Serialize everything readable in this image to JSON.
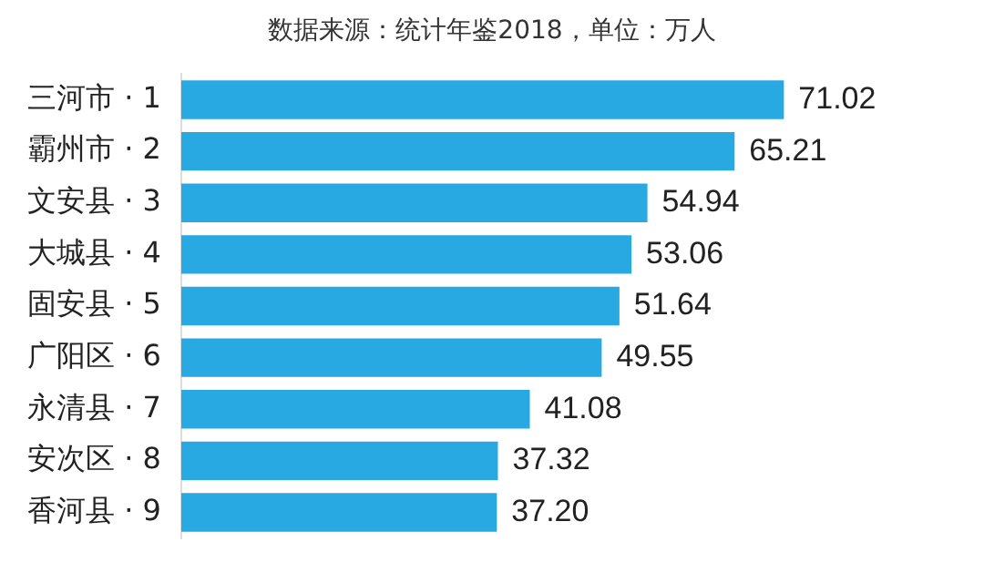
{
  "chart_data": {
    "type": "bar",
    "orientation": "horizontal",
    "subtitle": "数据来源：统计年鉴2018，单位：万人",
    "categories": [
      "三河市 · 1",
      "霸州市 · 2",
      "文安县 · 3",
      "大城县 · 4",
      "固安县 · 5",
      "广阳区 · 6",
      "永清县 · 7",
      "安次区 · 8",
      "香河县 · 9"
    ],
    "values": [
      71.02,
      65.21,
      54.94,
      53.06,
      51.64,
      49.55,
      41.08,
      37.32,
      37.2
    ],
    "value_labels": [
      "71.02",
      "65.21",
      "54.94",
      "53.06",
      "51.64",
      "49.55",
      "41.08",
      "37.32",
      "37.20"
    ],
    "color": "#29a9e1"
  }
}
